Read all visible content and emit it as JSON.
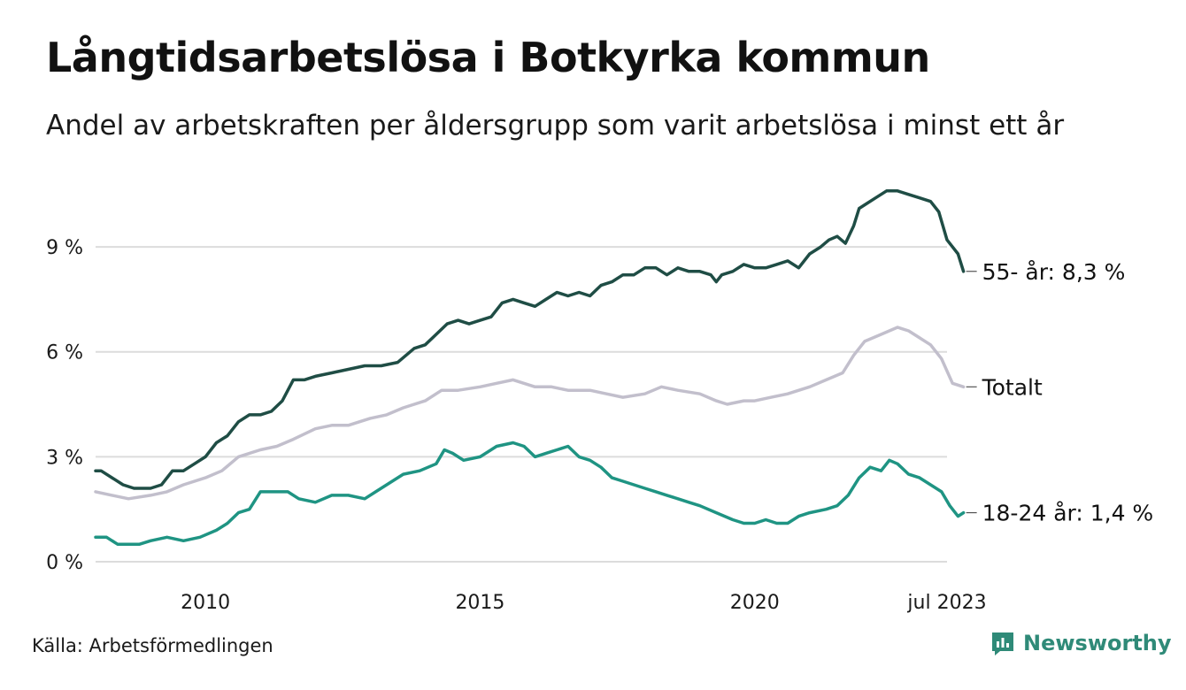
{
  "header": {
    "title": "Långtidsarbetslösa i Botkyrka kommun",
    "subtitle": "Andel av arbetskraften per åldersgrupp som varit arbetslösa i minst ett år"
  },
  "footer": {
    "source": "Källa: Arbetsförmedlingen",
    "brand": "Newsworthy",
    "brand_icon": "newsworthy-logo-icon",
    "brand_color": "#2f8a78"
  },
  "chart_data": {
    "type": "line",
    "x_range": [
      2008.0,
      2023.5
    ],
    "ylim": [
      0,
      11
    ],
    "y_ticks": [
      {
        "value": 0,
        "label": "0 %"
      },
      {
        "value": 3,
        "label": "3 %"
      },
      {
        "value": 6,
        "label": "6 %"
      },
      {
        "value": 9,
        "label": "9 %"
      }
    ],
    "x_ticks": [
      {
        "value": 2010,
        "label": "2010"
      },
      {
        "value": 2015,
        "label": "2015"
      },
      {
        "value": 2020,
        "label": "2020"
      },
      {
        "value": 2023.5,
        "label": "jul 2023"
      }
    ],
    "grid": true,
    "series": [
      {
        "name": "55- år",
        "label": "55- år: 8,3 %",
        "color": "#1f4d45",
        "points": [
          [
            2008.0,
            2.6
          ],
          [
            2008.1,
            2.6
          ],
          [
            2008.3,
            2.4
          ],
          [
            2008.5,
            2.2
          ],
          [
            2008.7,
            2.1
          ],
          [
            2009.0,
            2.1
          ],
          [
            2009.2,
            2.2
          ],
          [
            2009.4,
            2.6
          ],
          [
            2009.6,
            2.6
          ],
          [
            2009.8,
            2.8
          ],
          [
            2010.0,
            3.0
          ],
          [
            2010.2,
            3.4
          ],
          [
            2010.4,
            3.6
          ],
          [
            2010.6,
            4.0
          ],
          [
            2010.8,
            4.2
          ],
          [
            2011.0,
            4.2
          ],
          [
            2011.2,
            4.3
          ],
          [
            2011.4,
            4.6
          ],
          [
            2011.6,
            5.2
          ],
          [
            2011.8,
            5.2
          ],
          [
            2012.0,
            5.3
          ],
          [
            2012.3,
            5.4
          ],
          [
            2012.6,
            5.5
          ],
          [
            2012.9,
            5.6
          ],
          [
            2013.2,
            5.6
          ],
          [
            2013.5,
            5.7
          ],
          [
            2013.8,
            6.1
          ],
          [
            2014.0,
            6.2
          ],
          [
            2014.2,
            6.5
          ],
          [
            2014.4,
            6.8
          ],
          [
            2014.6,
            6.9
          ],
          [
            2014.8,
            6.8
          ],
          [
            2015.0,
            6.9
          ],
          [
            2015.2,
            7.0
          ],
          [
            2015.4,
            7.4
          ],
          [
            2015.6,
            7.5
          ],
          [
            2015.8,
            7.4
          ],
          [
            2016.0,
            7.3
          ],
          [
            2016.2,
            7.5
          ],
          [
            2016.4,
            7.7
          ],
          [
            2016.6,
            7.6
          ],
          [
            2016.8,
            7.7
          ],
          [
            2017.0,
            7.6
          ],
          [
            2017.2,
            7.9
          ],
          [
            2017.4,
            8.0
          ],
          [
            2017.6,
            8.2
          ],
          [
            2017.8,
            8.2
          ],
          [
            2018.0,
            8.4
          ],
          [
            2018.2,
            8.4
          ],
          [
            2018.4,
            8.2
          ],
          [
            2018.6,
            8.4
          ],
          [
            2018.8,
            8.3
          ],
          [
            2019.0,
            8.3
          ],
          [
            2019.2,
            8.2
          ],
          [
            2019.3,
            8.0
          ],
          [
            2019.4,
            8.2
          ],
          [
            2019.6,
            8.3
          ],
          [
            2019.8,
            8.5
          ],
          [
            2020.0,
            8.4
          ],
          [
            2020.2,
            8.4
          ],
          [
            2020.4,
            8.5
          ],
          [
            2020.6,
            8.6
          ],
          [
            2020.8,
            8.4
          ],
          [
            2021.0,
            8.8
          ],
          [
            2021.2,
            9.0
          ],
          [
            2021.35,
            9.2
          ],
          [
            2021.5,
            9.3
          ],
          [
            2021.65,
            9.1
          ],
          [
            2021.8,
            9.6
          ],
          [
            2021.9,
            10.1
          ],
          [
            2022.0,
            10.2
          ],
          [
            2022.2,
            10.4
          ],
          [
            2022.4,
            10.6
          ],
          [
            2022.6,
            10.6
          ],
          [
            2022.8,
            10.5
          ],
          [
            2023.0,
            10.4
          ],
          [
            2023.2,
            10.3
          ],
          [
            2023.35,
            10.0
          ],
          [
            2023.5,
            9.2
          ],
          [
            2023.6,
            9.0
          ],
          [
            2023.7,
            8.8
          ],
          [
            2023.8,
            8.3
          ]
        ]
      },
      {
        "name": "Totalt",
        "label": "Totalt",
        "color": "#c2bfcc",
        "points": [
          [
            2008.0,
            2.0
          ],
          [
            2008.3,
            1.9
          ],
          [
            2008.6,
            1.8
          ],
          [
            2009.0,
            1.9
          ],
          [
            2009.3,
            2.0
          ],
          [
            2009.6,
            2.2
          ],
          [
            2010.0,
            2.4
          ],
          [
            2010.3,
            2.6
          ],
          [
            2010.6,
            3.0
          ],
          [
            2011.0,
            3.2
          ],
          [
            2011.3,
            3.3
          ],
          [
            2011.6,
            3.5
          ],
          [
            2012.0,
            3.8
          ],
          [
            2012.3,
            3.9
          ],
          [
            2012.6,
            3.9
          ],
          [
            2013.0,
            4.1
          ],
          [
            2013.3,
            4.2
          ],
          [
            2013.6,
            4.4
          ],
          [
            2014.0,
            4.6
          ],
          [
            2014.3,
            4.9
          ],
          [
            2014.6,
            4.9
          ],
          [
            2015.0,
            5.0
          ],
          [
            2015.3,
            5.1
          ],
          [
            2015.6,
            5.2
          ],
          [
            2016.0,
            5.0
          ],
          [
            2016.3,
            5.0
          ],
          [
            2016.6,
            4.9
          ],
          [
            2017.0,
            4.9
          ],
          [
            2017.3,
            4.8
          ],
          [
            2017.6,
            4.7
          ],
          [
            2018.0,
            4.8
          ],
          [
            2018.3,
            5.0
          ],
          [
            2018.6,
            4.9
          ],
          [
            2019.0,
            4.8
          ],
          [
            2019.3,
            4.6
          ],
          [
            2019.5,
            4.5
          ],
          [
            2019.8,
            4.6
          ],
          [
            2020.0,
            4.6
          ],
          [
            2020.3,
            4.7
          ],
          [
            2020.6,
            4.8
          ],
          [
            2021.0,
            5.0
          ],
          [
            2021.3,
            5.2
          ],
          [
            2021.6,
            5.4
          ],
          [
            2021.8,
            5.9
          ],
          [
            2022.0,
            6.3
          ],
          [
            2022.3,
            6.5
          ],
          [
            2022.6,
            6.7
          ],
          [
            2022.8,
            6.6
          ],
          [
            2023.0,
            6.4
          ],
          [
            2023.2,
            6.2
          ],
          [
            2023.4,
            5.8
          ],
          [
            2023.6,
            5.1
          ],
          [
            2023.8,
            5.0
          ]
        ]
      },
      {
        "name": "18-24 år",
        "label": "18-24 år: 1,4 %",
        "color": "#1f9483",
        "points": [
          [
            2008.0,
            0.7
          ],
          [
            2008.2,
            0.7
          ],
          [
            2008.4,
            0.5
          ],
          [
            2008.6,
            0.5
          ],
          [
            2008.8,
            0.5
          ],
          [
            2009.0,
            0.6
          ],
          [
            2009.3,
            0.7
          ],
          [
            2009.6,
            0.6
          ],
          [
            2009.9,
            0.7
          ],
          [
            2010.2,
            0.9
          ],
          [
            2010.4,
            1.1
          ],
          [
            2010.6,
            1.4
          ],
          [
            2010.8,
            1.5
          ],
          [
            2011.0,
            2.0
          ],
          [
            2011.2,
            2.0
          ],
          [
            2011.5,
            2.0
          ],
          [
            2011.7,
            1.8
          ],
          [
            2012.0,
            1.7
          ],
          [
            2012.3,
            1.9
          ],
          [
            2012.6,
            1.9
          ],
          [
            2012.9,
            1.8
          ],
          [
            2013.1,
            2.0
          ],
          [
            2013.3,
            2.2
          ],
          [
            2013.6,
            2.5
          ],
          [
            2013.9,
            2.6
          ],
          [
            2014.2,
            2.8
          ],
          [
            2014.35,
            3.2
          ],
          [
            2014.5,
            3.1
          ],
          [
            2014.7,
            2.9
          ],
          [
            2015.0,
            3.0
          ],
          [
            2015.3,
            3.3
          ],
          [
            2015.6,
            3.4
          ],
          [
            2015.8,
            3.3
          ],
          [
            2016.0,
            3.0
          ],
          [
            2016.2,
            3.1
          ],
          [
            2016.4,
            3.2
          ],
          [
            2016.6,
            3.3
          ],
          [
            2016.8,
            3.0
          ],
          [
            2017.0,
            2.9
          ],
          [
            2017.2,
            2.7
          ],
          [
            2017.4,
            2.4
          ],
          [
            2017.6,
            2.3
          ],
          [
            2017.8,
            2.2
          ],
          [
            2018.0,
            2.1
          ],
          [
            2018.2,
            2.0
          ],
          [
            2018.4,
            1.9
          ],
          [
            2018.6,
            1.8
          ],
          [
            2018.8,
            1.7
          ],
          [
            2019.0,
            1.6
          ],
          [
            2019.3,
            1.4
          ],
          [
            2019.6,
            1.2
          ],
          [
            2019.8,
            1.1
          ],
          [
            2020.0,
            1.1
          ],
          [
            2020.2,
            1.2
          ],
          [
            2020.4,
            1.1
          ],
          [
            2020.6,
            1.1
          ],
          [
            2020.8,
            1.3
          ],
          [
            2021.0,
            1.4
          ],
          [
            2021.3,
            1.5
          ],
          [
            2021.5,
            1.6
          ],
          [
            2021.7,
            1.9
          ],
          [
            2021.9,
            2.4
          ],
          [
            2022.1,
            2.7
          ],
          [
            2022.3,
            2.6
          ],
          [
            2022.45,
            2.9
          ],
          [
            2022.6,
            2.8
          ],
          [
            2022.8,
            2.5
          ],
          [
            2023.0,
            2.4
          ],
          [
            2023.2,
            2.2
          ],
          [
            2023.4,
            2.0
          ],
          [
            2023.55,
            1.6
          ],
          [
            2023.7,
            1.3
          ],
          [
            2023.8,
            1.4
          ]
        ]
      }
    ]
  }
}
